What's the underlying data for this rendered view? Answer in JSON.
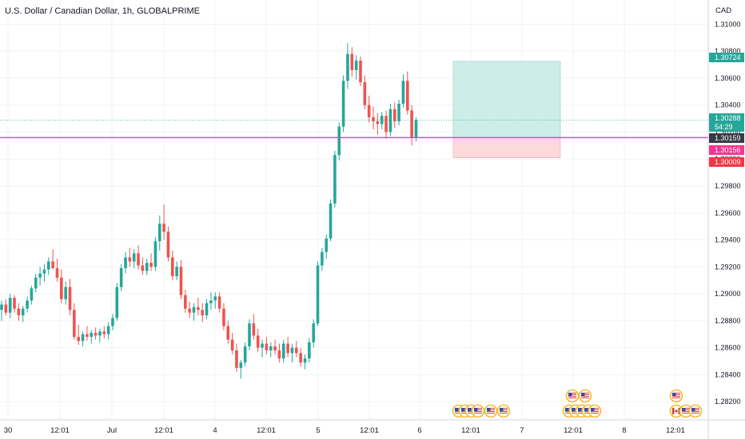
{
  "header": {
    "symbol_title": "U.S. Dollar / Canadian Dollar, 1h, GLOBALPRIME",
    "currency": "CAD"
  },
  "chart_data": {
    "type": "candlestick",
    "title": "U.S. Dollar / Canadian Dollar, 1h, GLOBALPRIME",
    "ylabel": "CAD",
    "ylim": [
      1.281,
      1.311
    ],
    "y_ticks": [
      "1.31000",
      "1.30800",
      "1.30600",
      "1.30400",
      "1.30200",
      "1.30000",
      "1.29800",
      "1.29600",
      "1.29400",
      "1.29200",
      "1.29000",
      "1.28800",
      "1.28600",
      "1.28400",
      "1.28200"
    ],
    "x_ticks": [
      "30",
      "12:01",
      "Jul",
      "12:01",
      "4",
      "12:01",
      "5",
      "12:01",
      "6",
      "12:01",
      "7",
      "12:01",
      "8",
      "12:01"
    ],
    "grid": true,
    "price_labels": [
      {
        "text": "1.30724",
        "color": "#26a69a"
      },
      {
        "text": "1.30288",
        "color": "#26a69a"
      },
      {
        "text": "54:29",
        "color": "#26a69a"
      },
      {
        "text": "1.30159",
        "color": "#363a45"
      },
      {
        "text": "1.30156",
        "color": "#f23690"
      },
      {
        "text": "1.30009",
        "color": "#f23645"
      }
    ],
    "horizontal_line": {
      "value": 1.30159,
      "color": "#e040fb"
    },
    "current_price_line": {
      "value": 1.30288,
      "color": "#26a69a"
    },
    "position_box": {
      "entry": 1.30159,
      "target": 1.30724,
      "stop": 1.30009
    },
    "candles": [
      [
        1.2888,
        1.2895,
        1.288,
        1.2892
      ],
      [
        1.2892,
        1.2896,
        1.2884,
        1.2886
      ],
      [
        1.2886,
        1.29,
        1.2882,
        1.2897
      ],
      [
        1.2897,
        1.2899,
        1.2886,
        1.2889
      ],
      [
        1.2889,
        1.2893,
        1.288,
        1.2884
      ],
      [
        1.2884,
        1.2891,
        1.2879,
        1.2889
      ],
      [
        1.2889,
        1.2898,
        1.2886,
        1.2895
      ],
      [
        1.2895,
        1.2906,
        1.2892,
        1.2904
      ],
      [
        1.2904,
        1.2915,
        1.2901,
        1.2912
      ],
      [
        1.2912,
        1.292,
        1.2906,
        1.2915
      ],
      [
        1.2915,
        1.2922,
        1.2909,
        1.2918
      ],
      [
        1.2918,
        1.2927,
        1.2914,
        1.2924
      ],
      [
        1.2924,
        1.2933,
        1.2918,
        1.2919
      ],
      [
        1.2919,
        1.2926,
        1.2909,
        1.2912
      ],
      [
        1.2912,
        1.2918,
        1.2893,
        1.2896
      ],
      [
        1.2896,
        1.2909,
        1.2892,
        1.2905
      ],
      [
        1.2905,
        1.2911,
        1.2884,
        1.2888
      ],
      [
        1.2888,
        1.2893,
        1.2866,
        1.2868
      ],
      [
        1.2868,
        1.2877,
        1.2862,
        1.2865
      ],
      [
        1.2865,
        1.2872,
        1.2861,
        1.287
      ],
      [
        1.287,
        1.2876,
        1.2865,
        1.2868
      ],
      [
        1.2868,
        1.2873,
        1.2863,
        1.2871
      ],
      [
        1.2871,
        1.2875,
        1.2866,
        1.2869
      ],
      [
        1.2869,
        1.2874,
        1.2864,
        1.2872
      ],
      [
        1.2872,
        1.2876,
        1.2867,
        1.287
      ],
      [
        1.287,
        1.2879,
        1.2866,
        1.2876
      ],
      [
        1.2876,
        1.2885,
        1.2873,
        1.2882
      ],
      [
        1.2882,
        1.2908,
        1.288,
        1.2905
      ],
      [
        1.2905,
        1.2922,
        1.2902,
        1.2919
      ],
      [
        1.2919,
        1.2931,
        1.2915,
        1.2927
      ],
      [
        1.2927,
        1.2934,
        1.292,
        1.2924
      ],
      [
        1.2924,
        1.2933,
        1.2919,
        1.293
      ],
      [
        1.293,
        1.2936,
        1.2918,
        1.2921
      ],
      [
        1.2921,
        1.2927,
        1.2914,
        1.2917
      ],
      [
        1.2917,
        1.2926,
        1.2914,
        1.2923
      ],
      [
        1.2923,
        1.293,
        1.2917,
        1.292
      ],
      [
        1.292,
        1.2942,
        1.2917,
        1.2939
      ],
      [
        1.2939,
        1.2958,
        1.2932,
        1.2952
      ],
      [
        1.2952,
        1.2966,
        1.294,
        1.2946
      ],
      [
        1.2946,
        1.295,
        1.2924,
        1.2927
      ],
      [
        1.2927,
        1.2932,
        1.291,
        1.2913
      ],
      [
        1.2913,
        1.2924,
        1.291,
        1.292
      ],
      [
        1.292,
        1.2925,
        1.2896,
        1.2899
      ],
      [
        1.2899,
        1.2903,
        1.2886,
        1.2889
      ],
      [
        1.2889,
        1.2894,
        1.2882,
        1.2886
      ],
      [
        1.2886,
        1.2893,
        1.288,
        1.289
      ],
      [
        1.289,
        1.2897,
        1.2884,
        1.2888
      ],
      [
        1.2888,
        1.2893,
        1.2879,
        1.2884
      ],
      [
        1.2884,
        1.2896,
        1.2881,
        1.2893
      ],
      [
        1.2893,
        1.2901,
        1.2888,
        1.2895
      ],
      [
        1.2895,
        1.2901,
        1.2889,
        1.2898
      ],
      [
        1.2898,
        1.2901,
        1.2886,
        1.2889
      ],
      [
        1.2889,
        1.2893,
        1.2873,
        1.2876
      ],
      [
        1.2876,
        1.288,
        1.2863,
        1.2866
      ],
      [
        1.2866,
        1.2871,
        1.2855,
        1.2858
      ],
      [
        1.2858,
        1.2863,
        1.2842,
        1.2845
      ],
      [
        1.2845,
        1.2851,
        1.2837,
        1.2849
      ],
      [
        1.2849,
        1.2864,
        1.2846,
        1.2861
      ],
      [
        1.2861,
        1.2881,
        1.2858,
        1.2878
      ],
      [
        1.2878,
        1.2885,
        1.2866,
        1.2869
      ],
      [
        1.2869,
        1.2874,
        1.2857,
        1.286
      ],
      [
        1.286,
        1.2866,
        1.2853,
        1.2863
      ],
      [
        1.2863,
        1.2868,
        1.2855,
        1.2858
      ],
      [
        1.2858,
        1.2864,
        1.2853,
        1.2861
      ],
      [
        1.2861,
        1.2866,
        1.2855,
        1.2858
      ],
      [
        1.2858,
        1.2863,
        1.2849,
        1.2852
      ],
      [
        1.2852,
        1.2866,
        1.2849,
        1.2863
      ],
      [
        1.2863,
        1.2868,
        1.2853,
        1.2856
      ],
      [
        1.2856,
        1.2863,
        1.2849,
        1.286
      ],
      [
        1.286,
        1.2865,
        1.2853,
        1.2856
      ],
      [
        1.2856,
        1.286,
        1.2846,
        1.2849
      ],
      [
        1.2849,
        1.2855,
        1.2844,
        1.2852
      ],
      [
        1.2852,
        1.2867,
        1.2849,
        1.2864
      ],
      [
        1.2864,
        1.2881,
        1.286,
        1.2878
      ],
      [
        1.2878,
        1.2924,
        1.2876,
        1.2921
      ],
      [
        1.2921,
        1.2934,
        1.2917,
        1.2931
      ],
      [
        1.2931,
        1.2944,
        1.2926,
        1.2941
      ],
      [
        1.2941,
        1.297,
        1.2939,
        1.2967
      ],
      [
        1.2967,
        1.3006,
        1.2964,
        1.3003
      ],
      [
        1.3003,
        1.3027,
        1.2999,
        1.3024
      ],
      [
        1.3024,
        1.3062,
        1.302,
        1.3058
      ],
      [
        1.3058,
        1.3086,
        1.3052,
        1.3078
      ],
      [
        1.3078,
        1.3083,
        1.3061,
        1.3066
      ],
      [
        1.3066,
        1.3077,
        1.3059,
        1.3073
      ],
      [
        1.3073,
        1.3076,
        1.3054,
        1.3057
      ],
      [
        1.3057,
        1.3062,
        1.3037,
        1.304
      ],
      [
        1.304,
        1.3047,
        1.3027,
        1.3031
      ],
      [
        1.3031,
        1.3039,
        1.3022,
        1.3028
      ],
      [
        1.3028,
        1.3034,
        1.3018,
        1.3026
      ],
      [
        1.3026,
        1.3035,
        1.3022,
        1.3032
      ],
      [
        1.3032,
        1.3036,
        1.3015,
        1.302
      ],
      [
        1.302,
        1.3041,
        1.3017,
        1.3037
      ],
      [
        1.3037,
        1.3042,
        1.3023,
        1.3028
      ],
      [
        1.3028,
        1.3044,
        1.3025,
        1.3041
      ],
      [
        1.3041,
        1.3063,
        1.3038,
        1.3058
      ],
      [
        1.3058,
        1.3065,
        1.3033,
        1.3036
      ],
      [
        1.3036,
        1.304,
        1.301,
        1.3016
      ],
      [
        1.3016,
        1.3031,
        1.3013,
        1.3029
      ]
    ]
  },
  "events": [
    {
      "name": "us-flag-icon"
    },
    {
      "name": "us-flag-icon"
    },
    {
      "name": "us-flag-icon"
    },
    {
      "name": "us-flag-icon"
    },
    {
      "name": "us-flag-icon"
    },
    {
      "name": "us-flag-icon"
    },
    {
      "name": "us-flag-icon"
    },
    {
      "name": "us-flag-icon"
    },
    {
      "name": "us-flag-icon"
    },
    {
      "name": "us-flag-icon"
    },
    {
      "name": "us-flag-icon"
    },
    {
      "name": "us-flag-icon"
    },
    {
      "name": "us-flag-icon"
    },
    {
      "name": "us-flag-icon"
    },
    {
      "name": "ca-flag-icon"
    },
    {
      "name": "us-flag-icon"
    },
    {
      "name": "us-flag-icon"
    }
  ],
  "colors": {
    "up": "#26a69a",
    "down": "#ef5350",
    "grid": "#f0f3fa",
    "profit_zone": "#cdeee8",
    "loss_zone": "#fcd9da",
    "axis_text": "#131722"
  }
}
